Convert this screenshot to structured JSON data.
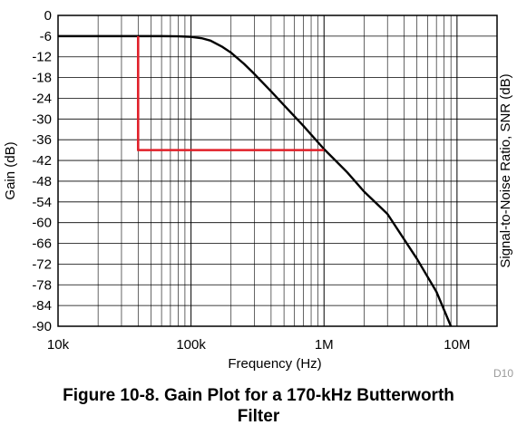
{
  "chart_data": {
    "type": "line",
    "title": "Figure 10-8. Gain Plot for a 170-kHz Butterworth Filter",
    "title_lines": [
      "Figure 10-8. Gain Plot for a 170-kHz Butterworth",
      "Filter"
    ],
    "xlabel": "Frequency  (Hz)",
    "ylabel": "Gain (dB)",
    "y2label": "Signal-to-Noise Ratio, SNR (dB)",
    "figure_code": "D10",
    "x_scale": "log",
    "xlim": [
      10000,
      20000000
    ],
    "ylim": [
      -90,
      0
    ],
    "x_ticks": [
      {
        "value": 10000,
        "label": "10k"
      },
      {
        "value": 100000,
        "label": "100k"
      },
      {
        "value": 1000000,
        "label": "1M"
      },
      {
        "value": 10000000,
        "label": "10M"
      }
    ],
    "y_ticks": [
      {
        "value": 0,
        "label": "0"
      },
      {
        "value": -6,
        "label": "-6"
      },
      {
        "value": -12,
        "label": "-12"
      },
      {
        "value": -18,
        "label": "-18"
      },
      {
        "value": -24,
        "label": "-24"
      },
      {
        "value": -30,
        "label": "-30"
      },
      {
        "value": -36,
        "label": "-36"
      },
      {
        "value": -42,
        "label": "-42"
      },
      {
        "value": -48,
        "label": "-48"
      },
      {
        "value": -54,
        "label": "-54"
      },
      {
        "value": -60,
        "label": "-60"
      },
      {
        "value": -66,
        "label": "-66"
      },
      {
        "value": -72,
        "label": "-72"
      },
      {
        "value": -78,
        "label": "-78"
      },
      {
        "value": -84,
        "label": "-84"
      },
      {
        "value": -90,
        "label": "-90"
      }
    ],
    "grid": true,
    "series": [
      {
        "color": "#000000",
        "x": [
          10000,
          30000,
          60000,
          80000,
          100000,
          120000,
          140000,
          170000,
          200000,
          250000,
          300000,
          400000,
          500000,
          700000,
          1000000,
          1500000,
          2000000,
          3000000,
          5000000,
          7000000,
          9000000
        ],
        "y": [
          -6,
          -6,
          -6,
          -6.05,
          -6.2,
          -6.6,
          -7.3,
          -9,
          -10.8,
          -14,
          -17,
          -22,
          -26,
          -32,
          -38.7,
          -45.5,
          -51,
          -57.5,
          -70.5,
          -80,
          -90
        ]
      },
      {
        "color": "#e0202a",
        "x": [
          40000,
          40000,
          1000000
        ],
        "y": [
          -6,
          -39,
          -39
        ]
      }
    ]
  }
}
